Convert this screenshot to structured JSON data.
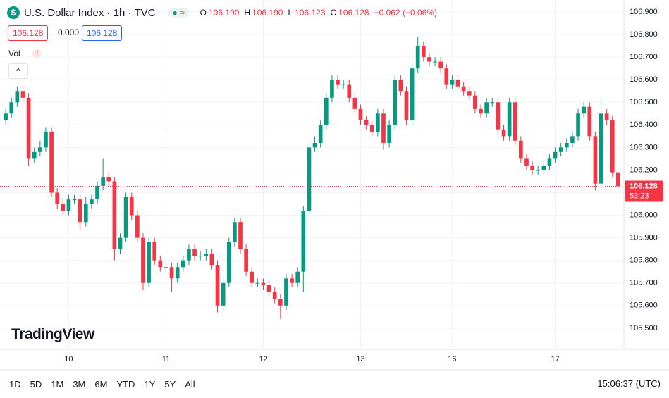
{
  "chart_data": {
    "type": "candlestick",
    "header": {
      "title": "U.S. Dollar Index · 1h · TVC",
      "ohlc": [
        {
          "key": "O",
          "value": "106.190"
        },
        {
          "key": "H",
          "value": "106.190"
        },
        {
          "key": "L",
          "value": "106.123"
        },
        {
          "key": "C",
          "value": "106.128"
        }
      ],
      "change": "−0.062 (−0.06%)",
      "bid": "106.128",
      "spread": "0.000",
      "ask": "106.128",
      "volume": "Vol"
    },
    "open": [
      106.42,
      106.45,
      106.5,
      106.55,
      106.52,
      106.25,
      106.28,
      106.3,
      106.37,
      106.1,
      106.05,
      106.02,
      106.07,
      106.07,
      105.97,
      106.05,
      106.07,
      106.13,
      106.17,
      106.15,
      105.85,
      105.9,
      106.08,
      106.0,
      105.9,
      105.7,
      105.88,
      105.8,
      105.77,
      105.77,
      105.72,
      105.77,
      105.8,
      105.85,
      105.82,
      105.82,
      105.83,
      105.78,
      105.6,
      105.7,
      105.88,
      105.97,
      105.85,
      105.75,
      105.7,
      105.7,
      105.69,
      105.66,
      105.63,
      105.6,
      105.72,
      105.7,
      105.75,
      106.02,
      106.3,
      106.32,
      106.4,
      106.52,
      106.6,
      106.58,
      106.58,
      106.52,
      106.47,
      106.42,
      106.4,
      106.37,
      106.45,
      106.32,
      106.4,
      106.6,
      106.55,
      106.42,
      106.65,
      106.75,
      106.7,
      106.68,
      106.68,
      106.65,
      106.58,
      106.6,
      106.57,
      106.55,
      106.53,
      106.47,
      106.45,
      106.5,
      106.5,
      106.38,
      106.35,
      106.5,
      106.33,
      106.25,
      106.22,
      106.2,
      106.2,
      106.22,
      106.25,
      106.28,
      106.3,
      106.32,
      106.35,
      106.45,
      106.48,
      106.35,
      106.14,
      106.45,
      106.42,
      106.19
    ],
    "high": [
      106.47,
      106.52,
      106.57,
      106.57,
      106.54,
      106.3,
      106.33,
      106.39,
      106.39,
      106.12,
      106.07,
      106.09,
      106.09,
      106.09,
      106.08,
      106.09,
      106.15,
      106.25,
      106.19,
      106.17,
      105.92,
      106.1,
      106.1,
      106.02,
      105.92,
      105.9,
      105.9,
      105.82,
      105.79,
      105.79,
      105.79,
      105.82,
      105.87,
      105.87,
      105.84,
      105.85,
      105.85,
      105.8,
      105.72,
      105.9,
      105.99,
      105.99,
      105.87,
      105.77,
      105.72,
      105.72,
      105.71,
      105.68,
      105.65,
      105.74,
      105.74,
      105.77,
      106.04,
      106.32,
      106.35,
      106.42,
      106.54,
      106.62,
      106.62,
      106.6,
      106.6,
      106.54,
      106.49,
      106.44,
      106.42,
      106.47,
      106.47,
      106.42,
      106.62,
      106.62,
      106.57,
      106.67,
      106.79,
      106.77,
      106.72,
      106.7,
      106.7,
      106.67,
      106.62,
      106.62,
      106.59,
      106.57,
      106.55,
      106.49,
      106.52,
      106.52,
      106.52,
      106.4,
      106.52,
      106.52,
      106.35,
      106.27,
      106.24,
      106.22,
      106.24,
      106.27,
      106.3,
      106.32,
      106.34,
      106.37,
      106.47,
      106.5,
      106.5,
      106.37,
      106.52,
      106.47,
      106.44,
      106.19
    ],
    "low": [
      106.4,
      106.43,
      106.48,
      106.5,
      106.22,
      106.23,
      106.26,
      106.28,
      106.08,
      106.03,
      106.0,
      106.0,
      106.05,
      105.93,
      105.95,
      106.03,
      106.05,
      106.11,
      106.13,
      105.8,
      105.83,
      105.88,
      105.98,
      105.88,
      105.67,
      105.68,
      105.78,
      105.75,
      105.75,
      105.66,
      105.7,
      105.75,
      105.78,
      105.8,
      105.8,
      105.8,
      105.76,
      105.57,
      105.58,
      105.68,
      105.86,
      105.83,
      105.73,
      105.68,
      105.68,
      105.67,
      105.64,
      105.61,
      105.54,
      105.58,
      105.68,
      105.68,
      105.66,
      106.0,
      106.28,
      106.3,
      106.38,
      106.5,
      106.56,
      106.56,
      106.5,
      106.45,
      106.4,
      106.38,
      106.35,
      106.35,
      106.29,
      106.3,
      106.38,
      106.53,
      106.4,
      106.4,
      106.63,
      106.68,
      106.66,
      106.66,
      106.63,
      106.56,
      106.56,
      106.55,
      106.53,
      106.51,
      106.45,
      106.43,
      106.43,
      106.48,
      106.36,
      106.33,
      106.33,
      106.31,
      106.23,
      106.2,
      106.18,
      106.18,
      106.18,
      106.2,
      106.23,
      106.26,
      106.28,
      106.3,
      106.33,
      106.43,
      106.33,
      106.11,
      106.12,
      106.4,
      106.17,
      106.123
    ],
    "close": [
      106.45,
      106.5,
      106.55,
      106.52,
      106.25,
      106.28,
      106.3,
      106.37,
      106.1,
      106.05,
      106.02,
      106.07,
      106.07,
      105.97,
      106.05,
      106.07,
      106.13,
      106.17,
      106.15,
      105.85,
      105.9,
      106.08,
      106.0,
      105.9,
      105.7,
      105.88,
      105.8,
      105.77,
      105.77,
      105.72,
      105.77,
      105.8,
      105.85,
      105.82,
      105.82,
      105.83,
      105.78,
      105.6,
      105.7,
      105.88,
      105.97,
      105.85,
      105.75,
      105.7,
      105.7,
      105.69,
      105.66,
      105.63,
      105.6,
      105.72,
      105.7,
      105.75,
      106.02,
      106.3,
      106.32,
      106.4,
      106.52,
      106.6,
      106.58,
      106.58,
      106.52,
      106.47,
      106.42,
      106.4,
      106.37,
      106.45,
      106.32,
      106.4,
      106.6,
      106.55,
      106.42,
      106.65,
      106.75,
      106.7,
      106.68,
      106.68,
      106.65,
      106.58,
      106.6,
      106.57,
      106.55,
      106.53,
      106.47,
      106.45,
      106.5,
      106.5,
      106.38,
      106.35,
      106.5,
      106.33,
      106.25,
      106.22,
      106.2,
      106.2,
      106.22,
      106.25,
      106.28,
      106.3,
      106.32,
      106.35,
      106.45,
      106.48,
      106.35,
      106.14,
      106.45,
      106.42,
      106.19,
      106.128
    ],
    "up_color": "#089981",
    "down_color": "#f23645",
    "xlim": [
      -1,
      108
    ],
    "xticks": [
      {
        "value": 11,
        "label": "10"
      },
      {
        "value": 28,
        "label": "11"
      },
      {
        "value": 45,
        "label": "12"
      },
      {
        "value": 62,
        "label": "13"
      },
      {
        "value": 78,
        "label": "16"
      },
      {
        "value": 96,
        "label": "17"
      }
    ],
    "ylim": [
      105.406,
      106.953
    ],
    "yticks": [
      {
        "value": 105.5,
        "label": "105.500"
      },
      {
        "value": 105.6,
        "label": "105.600"
      },
      {
        "value": 105.7,
        "label": "105.700"
      },
      {
        "value": 105.8,
        "label": "105.800"
      },
      {
        "value": 105.9,
        "label": "105.900"
      },
      {
        "value": 106.0,
        "label": "106.000"
      },
      {
        "value": 106.1,
        "label": "106.100"
      },
      {
        "value": 106.2,
        "label": "106.200"
      },
      {
        "value": 106.3,
        "label": "106.300"
      },
      {
        "value": 106.4,
        "label": "106.400"
      },
      {
        "value": 106.5,
        "label": "106.500"
      },
      {
        "value": 106.6,
        "label": "106.600"
      },
      {
        "value": 106.7,
        "label": "106.700"
      },
      {
        "value": 106.8,
        "label": "106.800"
      },
      {
        "value": 106.9,
        "label": "106.900"
      }
    ],
    "grid": true,
    "countdown": "53:23",
    "watermark": "TradingView",
    "ranges": [
      "1D",
      "5D",
      "1M",
      "3M",
      "6M",
      "YTD",
      "1Y",
      "5Y",
      "All"
    ],
    "clock": "15:06:37 (UTC)"
  }
}
